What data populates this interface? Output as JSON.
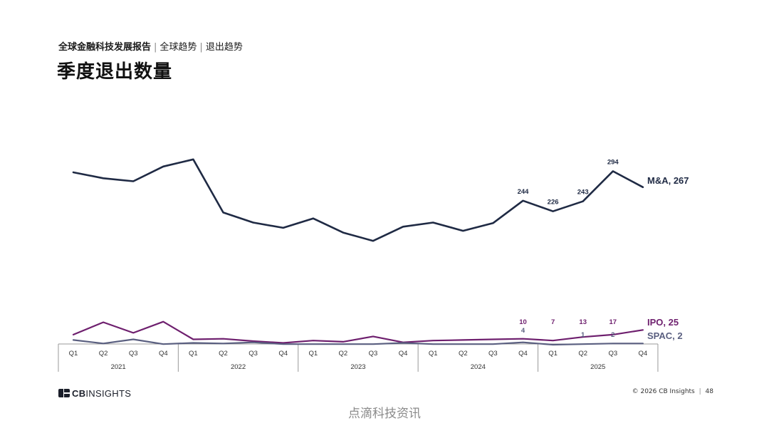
{
  "header": {
    "report": "全球金融科技发展报告",
    "crumb1": "全球趋势",
    "crumb2": "退出趋势",
    "title": "季度退出数量"
  },
  "footer": {
    "logo_prefix": "CB",
    "logo_suffix": "INSIGHTS",
    "copyright": "© 2026 CB Insights",
    "page_sep": "|",
    "page_number": "48",
    "watermark": "点滴科技资讯"
  },
  "colors": {
    "ma": "#1f2a44",
    "ipo": "#6e1f6e",
    "spac": "#5a5f80",
    "axis": "#999999"
  },
  "chart_data": {
    "type": "line",
    "title": "季度退出数量",
    "xlabel": "",
    "ylabel": "",
    "ylim": [
      0,
      300
    ],
    "grid": false,
    "legend": "inline-right",
    "quarters": [
      "Q1",
      "Q2",
      "Q3",
      "Q4",
      "Q1",
      "Q2",
      "Q3",
      "Q4",
      "Q1",
      "Q2",
      "Q3",
      "Q4",
      "Q1",
      "Q2",
      "Q3",
      "Q4",
      "Q1",
      "Q2",
      "Q3",
      "Q4"
    ],
    "years": [
      "2021",
      "2022",
      "2023",
      "2024",
      "2025"
    ],
    "series": [
      {
        "key": "ma",
        "name": "M&A",
        "end_label": "M&A, 267",
        "values": [
          292,
          282,
          277,
          302,
          314,
          224,
          207,
          198,
          214,
          190,
          176,
          200,
          207,
          193,
          206,
          244,
          226,
          243,
          294,
          267
        ],
        "data_labels": {
          "15": "244",
          "16": "226",
          "17": "243",
          "18": "294"
        }
      },
      {
        "key": "ipo",
        "name": "IPO",
        "end_label": "IPO, 25",
        "values": [
          17,
          38,
          20,
          39,
          9,
          10,
          6,
          3,
          7,
          5,
          14,
          4,
          7,
          8,
          9,
          10,
          7,
          13,
          17,
          25
        ],
        "data_labels": {
          "15": "10",
          "16": "7",
          "17": "13",
          "18": "17"
        }
      },
      {
        "key": "spac",
        "name": "SPAC",
        "end_label": "SPAC, 2",
        "values": [
          8,
          2,
          9,
          1,
          3,
          2,
          4,
          1,
          1,
          1,
          1,
          3,
          1,
          1,
          1,
          4,
          0,
          1,
          2,
          2
        ],
        "data_labels": {
          "15": "4",
          "17": "1",
          "18": "2"
        }
      }
    ]
  }
}
